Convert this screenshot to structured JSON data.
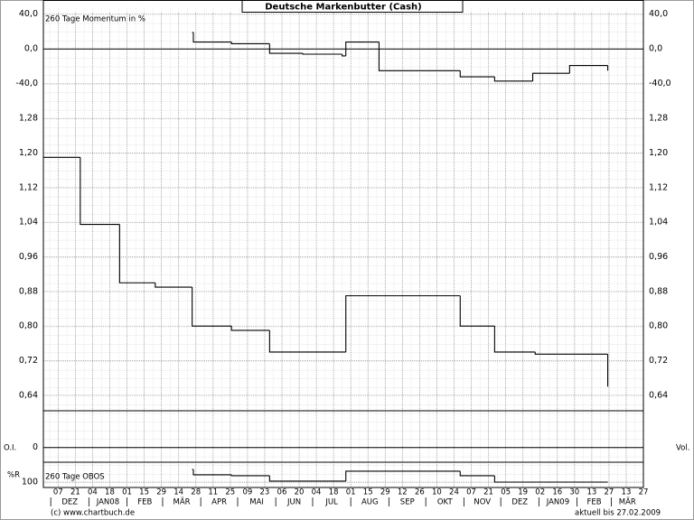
{
  "title": "Deutsche Markenbutter (Cash)",
  "credit": "(c) www.chartbuch.de",
  "updated": "aktuell bis 27.02.2009",
  "x_axis": {
    "xlim": [
      "2007-11-25",
      "2009-03-27"
    ],
    "xticks": [
      {
        "value": "2007-12-07",
        "label": "07"
      },
      {
        "value": "2007-12-21",
        "label": "21"
      },
      {
        "value": "2008-01-04",
        "label": "04"
      },
      {
        "value": "2008-01-18",
        "label": "18"
      },
      {
        "value": "2008-02-01",
        "label": "01"
      },
      {
        "value": "2008-02-15",
        "label": "15"
      },
      {
        "value": "2008-02-29",
        "label": "29"
      },
      {
        "value": "2008-03-14",
        "label": "14"
      },
      {
        "value": "2008-03-28",
        "label": "28"
      },
      {
        "value": "2008-04-11",
        "label": "11"
      },
      {
        "value": "2008-04-25",
        "label": "25"
      },
      {
        "value": "2008-05-09",
        "label": "09"
      },
      {
        "value": "2008-05-23",
        "label": "23"
      },
      {
        "value": "2008-06-06",
        "label": "06"
      },
      {
        "value": "2008-06-20",
        "label": "20"
      },
      {
        "value": "2008-07-04",
        "label": "04"
      },
      {
        "value": "2008-07-18",
        "label": "18"
      },
      {
        "value": "2008-08-01",
        "label": "01"
      },
      {
        "value": "2008-08-15",
        "label": "15"
      },
      {
        "value": "2008-08-29",
        "label": "29"
      },
      {
        "value": "2008-09-12",
        "label": "12"
      },
      {
        "value": "2008-09-26",
        "label": "26"
      },
      {
        "value": "2008-10-10",
        "label": "10"
      },
      {
        "value": "2008-10-24",
        "label": "24"
      },
      {
        "value": "2008-11-07",
        "label": "07"
      },
      {
        "value": "2008-11-21",
        "label": "21"
      },
      {
        "value": "2008-12-05",
        "label": "05"
      },
      {
        "value": "2008-12-19",
        "label": "19"
      },
      {
        "value": "2009-01-02",
        "label": "02"
      },
      {
        "value": "2009-01-16",
        "label": "16"
      },
      {
        "value": "2009-01-30",
        "label": "30"
      },
      {
        "value": "2009-02-13",
        "label": "13"
      },
      {
        "value": "2009-02-27",
        "label": "27"
      },
      {
        "value": "2009-03-13",
        "label": "13"
      },
      {
        "value": "2009-03-27",
        "label": "27"
      }
    ],
    "months": [
      {
        "value": "2007-12",
        "label": "DEZ"
      },
      {
        "value": "2008-01",
        "label": "JAN08"
      },
      {
        "value": "2008-02",
        "label": "FEB"
      },
      {
        "value": "2008-03",
        "label": "MÄR"
      },
      {
        "value": "2008-04",
        "label": "APR"
      },
      {
        "value": "2008-05",
        "label": "MAI"
      },
      {
        "value": "2008-06",
        "label": "JUN"
      },
      {
        "value": "2008-07",
        "label": "JUL"
      },
      {
        "value": "2008-08",
        "label": "AUG"
      },
      {
        "value": "2008-09",
        "label": "SEP"
      },
      {
        "value": "2008-10",
        "label": "OKT"
      },
      {
        "value": "2008-11",
        "label": "NOV"
      },
      {
        "value": "2008-12",
        "label": "DEZ"
      },
      {
        "value": "2009-01",
        "label": "JAN09"
      },
      {
        "value": "2009-02",
        "label": "FEB"
      },
      {
        "value": "2009-03",
        "label": "MÄR"
      }
    ]
  },
  "chart_data": [
    {
      "type": "line",
      "step": true,
      "label": "260 Tage Momentum in %",
      "right_axis_labels": true,
      "ylim": [
        -60,
        48
      ],
      "yticks": [
        {
          "value": 40,
          "label": "40,0"
        },
        {
          "value": 0,
          "label": "0,0"
        },
        {
          "value": -40,
          "label": "-40,0"
        }
      ],
      "series": [
        {
          "color": "#000000",
          "x": [
            "2008-03-25",
            "2008-03-26",
            "2008-04-26",
            "2008-05-27",
            "2008-06-23",
            "2008-07-25",
            "2008-07-28",
            "2008-08-24",
            "2008-10-29",
            "2008-11-26",
            "2008-12-27",
            "2009-01-26",
            "2009-02-26"
          ],
          "values": [
            19,
            8,
            6,
            -5,
            -6,
            -8,
            8,
            -25,
            -32,
            -37,
            -28,
            -19,
            -25
          ]
        }
      ]
    },
    {
      "type": "line",
      "step": true,
      "right_axis_labels": true,
      "ylim": [
        0.6,
        1.32
      ],
      "yticks": [
        {
          "value": 1.28,
          "label": "1,28"
        },
        {
          "value": 1.2,
          "label": "1,20"
        },
        {
          "value": 1.12,
          "label": "1,12"
        },
        {
          "value": 1.04,
          "label": "1,04"
        },
        {
          "value": 0.96,
          "label": "0,96"
        },
        {
          "value": 0.88,
          "label": "0,88"
        },
        {
          "value": 0.8,
          "label": "0,80"
        },
        {
          "value": 0.72,
          "label": "0,72"
        },
        {
          "value": 0.64,
          "label": "0,64"
        }
      ],
      "series": [
        {
          "color": "#000000",
          "x": [
            "2007-11-25",
            "2007-12-25",
            "2008-01-26",
            "2008-02-24",
            "2008-03-25",
            "2008-04-26",
            "2008-05-27",
            "2008-07-28",
            "2008-10-29",
            "2008-11-26",
            "2008-12-29",
            "2009-02-26"
          ],
          "values": [
            1.19,
            1.035,
            0.9,
            0.89,
            0.8,
            0.79,
            0.74,
            0.87,
            0.8,
            0.74,
            0.735,
            0.66
          ]
        }
      ]
    },
    {
      "type": "bar",
      "y_label_left": "O.I.",
      "y_label_right": "Vol.",
      "ylim": [
        -1,
        2.5
      ],
      "yticks": [
        0
      ],
      "series": []
    },
    {
      "type": "line",
      "step": true,
      "label": "260 Tage OBOS",
      "y_label_left": "%R",
      "ylim": [
        100,
        0
      ],
      "yticks": [
        100
      ],
      "series": [
        {
          "color": "#000000",
          "x": [
            "2008-03-25",
            "2008-03-26",
            "2008-04-26",
            "2008-05-27",
            "2008-07-28",
            "2008-10-29",
            "2008-11-26",
            "2009-02-26"
          ],
          "values": [
            22,
            55,
            61,
            94,
            33,
            61,
            100,
            100
          ]
        }
      ]
    }
  ]
}
